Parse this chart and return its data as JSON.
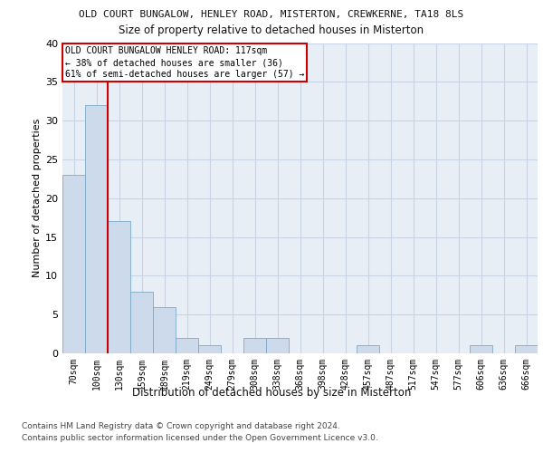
{
  "title1": "OLD COURT BUNGALOW, HENLEY ROAD, MISTERTON, CREWKERNE, TA18 8LS",
  "title2": "Size of property relative to detached houses in Misterton",
  "xlabel": "Distribution of detached houses by size in Misterton",
  "ylabel": "Number of detached properties",
  "footer1": "Contains HM Land Registry data © Crown copyright and database right 2024.",
  "footer2": "Contains public sector information licensed under the Open Government Licence v3.0.",
  "categories": [
    "70sqm",
    "100sqm",
    "130sqm",
    "159sqm",
    "189sqm",
    "219sqm",
    "249sqm",
    "279sqm",
    "308sqm",
    "338sqm",
    "368sqm",
    "398sqm",
    "428sqm",
    "457sqm",
    "487sqm",
    "517sqm",
    "547sqm",
    "577sqm",
    "606sqm",
    "636sqm",
    "666sqm"
  ],
  "values": [
    23,
    32,
    17,
    8,
    6,
    2,
    1,
    0,
    2,
    2,
    0,
    0,
    0,
    1,
    0,
    0,
    0,
    0,
    1,
    0,
    1
  ],
  "bar_color": "#ccdaeb",
  "bar_edge_color": "#7aaac8",
  "grid_color": "#c8d4e4",
  "background_color": "#e8eef6",
  "annotation_box_text": "OLD COURT BUNGALOW HENLEY ROAD: 117sqm\n← 38% of detached houses are smaller (36)\n61% of semi-detached houses are larger (57) →",
  "vline_x_index": 1.5,
  "vline_color": "#cc0000",
  "ylim": [
    0,
    40
  ],
  "yticks": [
    0,
    5,
    10,
    15,
    20,
    25,
    30,
    35,
    40
  ]
}
